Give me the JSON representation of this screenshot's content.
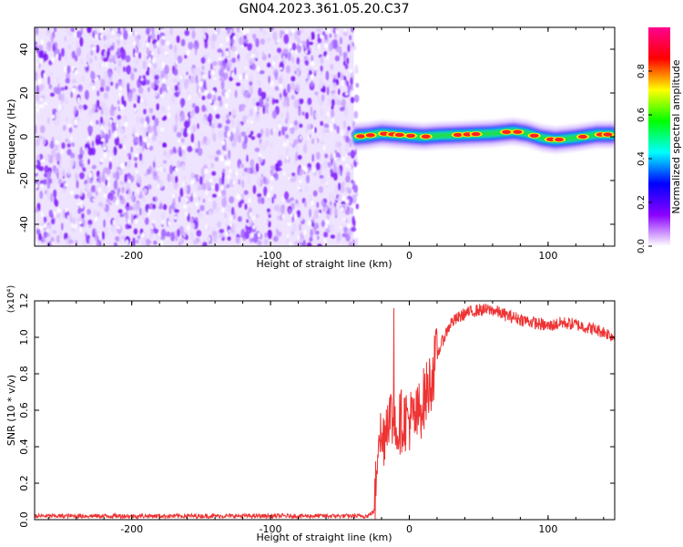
{
  "title": "GN04.2023.361.05.20.C37",
  "chart_data": [
    {
      "type": "heatmap",
      "xlabel": "Height of straight line (km)",
      "ylabel": "Frequency (Hz)",
      "xlim": [
        -270,
        148
      ],
      "ylim": [
        -50,
        50
      ],
      "xticks": [
        -200,
        -100,
        0,
        100
      ],
      "yticks": [
        -40,
        -20,
        0,
        20,
        40
      ],
      "noise_region_x": [
        -270,
        -40
      ],
      "signal_region_x": [
        -40,
        148
      ],
      "signal_frequency_track": [
        [
          -40,
          0
        ],
        [
          -30,
          0.5
        ],
        [
          -20,
          1.5
        ],
        [
          -10,
          1
        ],
        [
          0,
          0.5
        ],
        [
          10,
          0
        ],
        [
          20,
          0.5
        ],
        [
          40,
          1
        ],
        [
          60,
          1.5
        ],
        [
          75,
          2.5
        ],
        [
          85,
          1.5
        ],
        [
          95,
          -0.5
        ],
        [
          105,
          -1.5
        ],
        [
          120,
          -0.5
        ],
        [
          135,
          1
        ],
        [
          148,
          1
        ]
      ],
      "grid": false,
      "colorbar": {
        "label": "Normalized spectral amplitude",
        "range": [
          0,
          1
        ],
        "ticks": [
          "0.0",
          "0.2",
          "0.4",
          "0.6",
          "0.8"
        ],
        "colors": [
          "#ffffff",
          "#8a00ff",
          "#0000ff",
          "#00ffff",
          "#00ff00",
          "#ffff00",
          "#ff0000",
          "#ff0090"
        ]
      }
    },
    {
      "type": "line",
      "xlabel": "Height of straight line (km)",
      "ylabel": "SNR (10 * v/v)",
      "yscale_label": "(x10⁴)",
      "xlim": [
        -270,
        148
      ],
      "ylim": [
        0,
        1.2
      ],
      "xticks": [
        -200,
        -100,
        0,
        100
      ],
      "yticks": [
        "0.0",
        "0.2",
        "0.4",
        "0.6",
        "0.8",
        "1.0",
        "1.2"
      ],
      "series": [
        {
          "color": "#ee3333",
          "x": [
            -270,
            -30,
            -25,
            -22,
            -20,
            -15,
            -10,
            -5,
            0,
            5,
            10,
            15,
            20,
            25,
            30,
            40,
            50,
            60,
            70,
            80,
            90,
            100,
            110,
            120,
            130,
            140,
            148
          ],
          "y": [
            0.02,
            0.02,
            0.05,
            0.55,
            0.4,
            0.6,
            0.5,
            0.55,
            0.55,
            0.55,
            0.65,
            0.75,
            0.9,
            1.0,
            1.08,
            1.13,
            1.15,
            1.15,
            1.12,
            1.1,
            1.08,
            1.06,
            1.08,
            1.07,
            1.05,
            1.03,
            1.0
          ]
        }
      ],
      "grid": false
    }
  ]
}
